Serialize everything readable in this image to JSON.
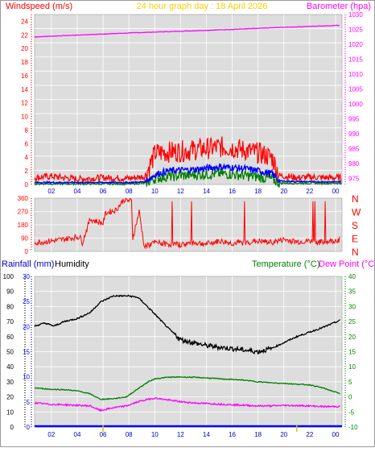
{
  "header": {
    "left_title": "Windspeed (m/s)",
    "center_title": "24 hour graph day : 18 April 2026",
    "right_title": "Barometer (hpa)"
  },
  "colors": {
    "wind_axis": "#ff0000",
    "baro_axis": "#ff00ff",
    "time_axis": "#0000cc",
    "title": "#ffcc00",
    "gust": "#ff0000",
    "avg": "#0000ff",
    "low": "#008000",
    "direction": "#ff0000",
    "rain": "#0000ff",
    "humidity": "#000000",
    "temperature": "#008000",
    "dewpoint": "#ff00ff",
    "temp_axis": "#008000",
    "dew_axis": "#ff00ff",
    "humidity_axis": "#000000",
    "rain_axis": "#0000ff",
    "plot_bg": "#dddddd",
    "grid": "#ffffff"
  },
  "chart_data": [
    {
      "id": "wind-baro",
      "type": "line",
      "title": "24 hour graph day : 18 April 2026",
      "ylabel": "Windspeed (m/s)",
      "y2label": "Barometer (hpa)",
      "ylim": [
        0,
        25
      ],
      "y2lim": [
        973,
        1030
      ],
      "yticks": [
        "0",
        "2",
        "4",
        "6",
        "8",
        "10",
        "12",
        "14",
        "16",
        "18",
        "20",
        "22",
        "24"
      ],
      "y2ticks": [
        "975",
        "980",
        "985",
        "990",
        "995",
        "1000",
        "1005",
        "1010",
        "1015",
        "1020",
        "1025",
        "1030"
      ],
      "xticks": [
        "02",
        "04",
        "06",
        "08",
        "10",
        "12",
        "14",
        "16",
        "18",
        "20",
        "22",
        "00"
      ],
      "xlim": [
        0.7,
        24.5
      ],
      "series": [
        {
          "key": "baro",
          "axis": "y2",
          "points": [
            [
              0.7,
              1022.5
            ],
            [
              4,
              1023.1
            ],
            [
              8,
              1023.8
            ],
            [
              12,
              1024.4
            ],
            [
              16,
              1025.0
            ],
            [
              20,
              1025.7
            ],
            [
              24.4,
              1026.4
            ]
          ]
        },
        {
          "key": "gust",
          "axis": "y",
          "points": [
            [
              0.7,
              1.0
            ],
            [
              2,
              1.2
            ],
            [
              4,
              0.8
            ],
            [
              6,
              1.0
            ],
            [
              8,
              0.9
            ],
            [
              9.2,
              1.2
            ],
            [
              10,
              4.6
            ],
            [
              11,
              4.8
            ],
            [
              12,
              4.9
            ],
            [
              13,
              5.1
            ],
            [
              14,
              5.3
            ],
            [
              15,
              5.5
            ],
            [
              16,
              5.4
            ],
            [
              17,
              5.0
            ],
            [
              18,
              4.6
            ],
            [
              19,
              4.0
            ],
            [
              19.6,
              1.3
            ],
            [
              21,
              1.0
            ],
            [
              22,
              1.1
            ],
            [
              23,
              1.0
            ],
            [
              24.4,
              1.0
            ]
          ]
        },
        {
          "key": "avg",
          "axis": "y",
          "points": [
            [
              0.7,
              0.3
            ],
            [
              4,
              0.3
            ],
            [
              8,
              0.3
            ],
            [
              9.2,
              0.4
            ],
            [
              10,
              1.5
            ],
            [
              11,
              2.0
            ],
            [
              12,
              2.1
            ],
            [
              13,
              2.2
            ],
            [
              14,
              2.4
            ],
            [
              15,
              2.6
            ],
            [
              16,
              2.5
            ],
            [
              17,
              2.3
            ],
            [
              18,
              2.0
            ],
            [
              19,
              1.6
            ],
            [
              19.6,
              0.5
            ],
            [
              22,
              0.4
            ],
            [
              24.4,
              0.4
            ]
          ]
        },
        {
          "key": "low",
          "axis": "y",
          "points": [
            [
              0.7,
              0.1
            ],
            [
              4,
              0.1
            ],
            [
              8,
              0.1
            ],
            [
              9.2,
              0.2
            ],
            [
              10,
              0.9
            ],
            [
              11,
              1.2
            ],
            [
              12,
              1.3
            ],
            [
              13,
              1.4
            ],
            [
              14,
              1.5
            ],
            [
              15,
              1.6
            ],
            [
              16,
              1.5
            ],
            [
              17,
              1.3
            ],
            [
              18,
              1.1
            ],
            [
              19,
              0.8
            ],
            [
              19.6,
              0.2
            ],
            [
              24.4,
              0.2
            ]
          ]
        }
      ]
    },
    {
      "id": "direction",
      "type": "line",
      "ylabel": "",
      "ylim": [
        0,
        360
      ],
      "yticks": [
        "0",
        "90",
        "180",
        "270",
        "360"
      ],
      "right_labels": [
        "N",
        "W",
        "S",
        "E",
        "N"
      ],
      "xlim": [
        0.7,
        24.5
      ],
      "series": [
        {
          "key": "direction",
          "points": [
            [
              0.7,
              60
            ],
            [
              2,
              70
            ],
            [
              3.5,
              90
            ],
            [
              4.2,
              100
            ],
            [
              4.4,
              60
            ],
            [
              5,
              220
            ],
            [
              5.6,
              200
            ],
            [
              6,
              190
            ],
            [
              6.2,
              260
            ],
            [
              7,
              280
            ],
            [
              7.6,
              350
            ],
            [
              8.2,
              340
            ],
            [
              8.3,
              90
            ],
            [
              8.8,
              270
            ],
            [
              9.2,
              30
            ],
            [
              10,
              60
            ],
            [
              11,
              50
            ],
            [
              12,
              45
            ],
            [
              13,
              60
            ],
            [
              14,
              50
            ],
            [
              15,
              70
            ],
            [
              16,
              55
            ],
            [
              17,
              60
            ],
            [
              18,
              70
            ],
            [
              19,
              60
            ],
            [
              20,
              80
            ],
            [
              21,
              65
            ],
            [
              22,
              70
            ],
            [
              23,
              60
            ],
            [
              24.4,
              80
            ]
          ]
        }
      ]
    },
    {
      "id": "temp-hum-rain",
      "type": "line",
      "ylabel": "Rainfall (mm)",
      "y2label": "Humidity",
      "y3label": "Temperature (°C)",
      "y4label": "Dew Point (°C)",
      "hum_lim": [
        0,
        100
      ],
      "rain_lim": [
        0,
        30
      ],
      "temp_lim": [
        -10,
        40
      ],
      "hum_ticks": [
        "0",
        "10",
        "20",
        "30",
        "40",
        "50",
        "60",
        "70",
        "80",
        "90",
        "100"
      ],
      "rain_ticks": [
        "0",
        "5",
        "10",
        "15",
        "20",
        "25",
        "30"
      ],
      "temp_ticks": [
        "-10",
        "-5",
        "0",
        "5",
        "10",
        "15",
        "20",
        "25",
        "30",
        "35",
        "40"
      ],
      "xticks": [
        "02",
        "04",
        "06",
        "08",
        "10",
        "12",
        "14",
        "16",
        "18",
        "20",
        "22",
        "00"
      ],
      "xlim": [
        0.7,
        24.5
      ],
      "series": [
        {
          "key": "humidity",
          "axis": "hum",
          "points": [
            [
              0.7,
              67
            ],
            [
              1.5,
              69
            ],
            [
              2.2,
              67
            ],
            [
              3,
              70
            ],
            [
              4,
              72
            ],
            [
              5,
              76
            ],
            [
              5.8,
              83
            ],
            [
              6.8,
              87
            ],
            [
              8,
              87
            ],
            [
              8.7,
              86
            ],
            [
              9.2,
              82
            ],
            [
              10,
              75
            ],
            [
              11,
              66
            ],
            [
              12,
              58
            ],
            [
              13,
              56
            ],
            [
              14,
              54
            ],
            [
              15,
              53
            ],
            [
              16,
              52
            ],
            [
              17,
              51
            ],
            [
              18,
              50
            ],
            [
              19,
              52
            ],
            [
              20,
              56
            ],
            [
              21,
              60
            ],
            [
              22,
              63
            ],
            [
              23,
              66
            ],
            [
              24.4,
              71
            ]
          ]
        },
        {
          "key": "temperature",
          "axis": "temp",
          "points": [
            [
              0.7,
              3.0
            ],
            [
              2,
              2.5
            ],
            [
              3,
              2.4
            ],
            [
              4,
              2.0
            ],
            [
              5,
              1.0
            ],
            [
              5.8,
              -0.8
            ],
            [
              6.8,
              -0.6
            ],
            [
              7.8,
              0.0
            ],
            [
              8.8,
              3.0
            ],
            [
              9.5,
              5.0
            ],
            [
              10,
              6.0
            ],
            [
              11,
              6.5
            ],
            [
              12,
              6.6
            ],
            [
              13,
              6.5
            ],
            [
              14,
              6.3
            ],
            [
              15,
              6.0
            ],
            [
              16,
              5.8
            ],
            [
              17,
              5.5
            ],
            [
              18,
              5.0
            ],
            [
              19,
              4.7
            ],
            [
              20,
              4.5
            ],
            [
              21,
              4.2
            ],
            [
              22,
              4.0
            ],
            [
              23,
              3.0
            ],
            [
              24.4,
              1.0
            ]
          ]
        },
        {
          "key": "dewpoint",
          "axis": "temp",
          "points": [
            [
              0.7,
              -2.0
            ],
            [
              2,
              -2.5
            ],
            [
              3,
              -2.6
            ],
            [
              4,
              -2.8
            ],
            [
              5,
              -3.0
            ],
            [
              5.8,
              -4.5
            ],
            [
              6.8,
              -3.6
            ],
            [
              7.8,
              -3.0
            ],
            [
              8.8,
              -1.5
            ],
            [
              9.5,
              -0.8
            ],
            [
              10,
              -0.4
            ],
            [
              11,
              -1.0
            ],
            [
              12,
              -1.6
            ],
            [
              13,
              -2.0
            ],
            [
              14,
              -2.2
            ],
            [
              15,
              -2.4
            ],
            [
              16,
              -2.6
            ],
            [
              17,
              -2.8
            ],
            [
              18,
              -3.0
            ],
            [
              19,
              -3.0
            ],
            [
              20,
              -2.8
            ],
            [
              21,
              -2.9
            ],
            [
              22,
              -3.0
            ],
            [
              23,
              -3.2
            ],
            [
              24.4,
              -3.2
            ]
          ]
        },
        {
          "key": "rain",
          "axis": "rain",
          "points": [
            [
              0.7,
              0
            ],
            [
              24.4,
              0
            ]
          ]
        }
      ]
    }
  ]
}
